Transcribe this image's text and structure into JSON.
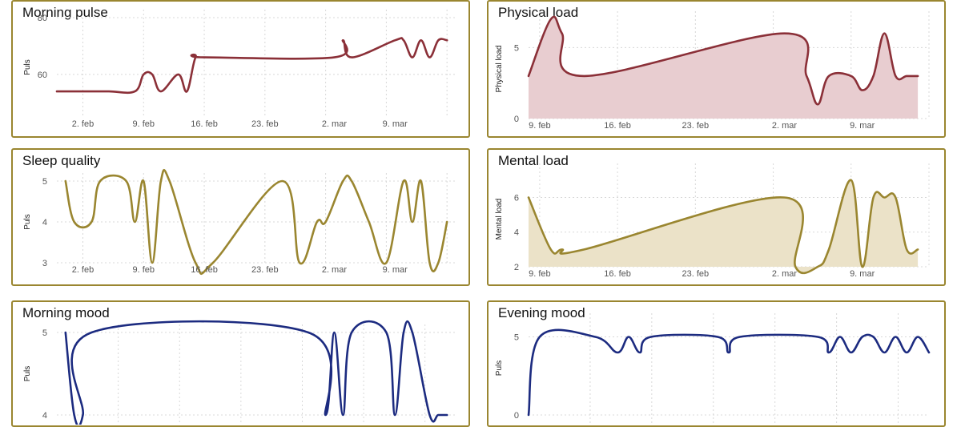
{
  "chart_data": [
    {
      "id": "morning-pulse",
      "type": "line",
      "title": "Morning pulse",
      "ylabel": "Puls",
      "ylim": [
        45,
        80
      ],
      "yticks": [
        60,
        80
      ],
      "xlim": [
        "2024-01-30",
        "2024-03-16"
      ],
      "xticks": [
        {
          "date": "2024-02-02",
          "label": "2. feb"
        },
        {
          "date": "2024-02-09",
          "label": "9. feb"
        },
        {
          "date": "2024-02-16",
          "label": "16. feb"
        },
        {
          "date": "2024-02-23",
          "label": "23. feb"
        },
        {
          "date": "2024-03-02",
          "label": "2. mar"
        },
        {
          "date": "2024-03-09",
          "label": "9. mar"
        }
      ],
      "color": "#8b3038",
      "area": false,
      "series": [
        {
          "x": [
            "2024-01-30",
            "2024-02-02",
            "2024-02-05",
            "2024-02-08",
            "2024-02-09",
            "2024-02-10",
            "2024-02-11",
            "2024-02-13",
            "2024-02-14",
            "2024-02-15",
            "2024-02-16",
            "2024-03-02",
            "2024-03-03",
            "2024-03-04",
            "2024-03-09",
            "2024-03-10",
            "2024-03-11",
            "2024-03-12",
            "2024-03-13",
            "2024-03-14",
            "2024-03-15"
          ],
          "y": [
            54,
            54,
            54,
            54,
            60,
            60,
            54,
            60,
            54,
            66,
            66,
            66,
            72,
            66,
            72,
            72,
            66,
            72,
            66,
            72,
            72
          ]
        }
      ]
    },
    {
      "id": "physical-load",
      "type": "area",
      "title": "Physical load",
      "ylabel": "Physical load",
      "ylim": [
        0,
        7
      ],
      "yticks": [
        0,
        5
      ],
      "xlim": [
        "2024-02-08",
        "2024-03-15"
      ],
      "xticks": [
        {
          "date": "2024-02-09",
          "label": "9. feb"
        },
        {
          "date": "2024-02-16",
          "label": "16. feb"
        },
        {
          "date": "2024-02-23",
          "label": "23. feb"
        },
        {
          "date": "2024-03-02",
          "label": "2. mar"
        },
        {
          "date": "2024-03-09",
          "label": "9. mar"
        }
      ],
      "color": "#8b3038",
      "fill": "#e8cdd0",
      "area": true,
      "series": [
        {
          "x": [
            "2024-02-08",
            "2024-02-10",
            "2024-02-11",
            "2024-02-13",
            "2024-03-02",
            "2024-03-04",
            "2024-03-05",
            "2024-03-06",
            "2024-03-08",
            "2024-03-09",
            "2024-03-10",
            "2024-03-11",
            "2024-03-12",
            "2024-03-13",
            "2024-03-14"
          ],
          "y": [
            3,
            7,
            6,
            3,
            6,
            3,
            1,
            3,
            3,
            2,
            3,
            6,
            3,
            3,
            3
          ]
        }
      ]
    },
    {
      "id": "sleep-quality",
      "type": "line",
      "title": "Sleep quality",
      "ylabel": "Puls",
      "ylim": [
        3,
        5
      ],
      "yticks": [
        3,
        4,
        5
      ],
      "xlim": [
        "2024-01-30",
        "2024-03-16"
      ],
      "xticks": [
        {
          "date": "2024-02-02",
          "label": "2. feb"
        },
        {
          "date": "2024-02-09",
          "label": "9. feb"
        },
        {
          "date": "2024-02-16",
          "label": "16. feb"
        },
        {
          "date": "2024-02-23",
          "label": "23. feb"
        },
        {
          "date": "2024-03-02",
          "label": "2. mar"
        },
        {
          "date": "2024-03-09",
          "label": "9. mar"
        }
      ],
      "color": "#9a8630",
      "area": false,
      "series": [
        {
          "x": [
            "2024-01-31",
            "2024-02-01",
            "2024-02-03",
            "2024-02-04",
            "2024-02-07",
            "2024-02-08",
            "2024-02-09",
            "2024-02-10",
            "2024-02-11",
            "2024-02-12",
            "2024-02-15",
            "2024-02-17",
            "2024-02-25",
            "2024-02-27",
            "2024-02-29",
            "2024-03-01",
            "2024-03-03",
            "2024-03-04",
            "2024-03-06",
            "2024-03-08",
            "2024-03-10",
            "2024-03-11",
            "2024-03-12",
            "2024-03-13",
            "2024-03-14",
            "2024-03-15"
          ],
          "y": [
            5,
            4,
            4,
            5,
            5,
            4,
            5,
            3,
            5,
            5,
            3,
            3,
            5,
            3,
            4,
            4,
            5,
            5,
            4,
            3,
            5,
            4,
            5,
            3,
            3,
            4
          ]
        }
      ]
    },
    {
      "id": "mental-load",
      "type": "area",
      "title": "Mental load",
      "ylabel": "Mental load",
      "ylim": [
        2,
        7.5
      ],
      "yticks": [
        2,
        4,
        6
      ],
      "xlim": [
        "2024-02-08",
        "2024-03-15"
      ],
      "xticks": [
        {
          "date": "2024-02-09",
          "label": "9. feb"
        },
        {
          "date": "2024-02-16",
          "label": "16. feb"
        },
        {
          "date": "2024-02-23",
          "label": "23. feb"
        },
        {
          "date": "2024-03-02",
          "label": "2. mar"
        },
        {
          "date": "2024-03-09",
          "label": "9. mar"
        }
      ],
      "color": "#9a8630",
      "fill": "#ebe2c8",
      "area": true,
      "series": [
        {
          "x": [
            "2024-02-08",
            "2024-02-10",
            "2024-02-11",
            "2024-02-13",
            "2024-03-02",
            "2024-03-03",
            "2024-03-05",
            "2024-03-06",
            "2024-03-08",
            "2024-03-09",
            "2024-03-10",
            "2024-03-11",
            "2024-03-12",
            "2024-03-13",
            "2024-03-14"
          ],
          "y": [
            6,
            3,
            3,
            3,
            6,
            2,
            2,
            3,
            7,
            2,
            6,
            6,
            6,
            3,
            3
          ]
        }
      ]
    },
    {
      "id": "morning-mood",
      "type": "line",
      "title": "Morning mood",
      "ylabel": "Puls",
      "ylim": [
        4,
        5
      ],
      "yticks": [
        4,
        5
      ],
      "xlim": [
        "2024-01-30",
        "2024-03-16"
      ],
      "xticks": [],
      "color": "#1c2b80",
      "area": false,
      "series": [
        {
          "x": [
            "2024-01-31",
            "2024-02-01",
            "2024-02-02",
            "2024-02-03",
            "2024-02-28",
            "2024-03-01",
            "2024-03-02",
            "2024-03-03",
            "2024-03-04",
            "2024-03-08",
            "2024-03-09",
            "2024-03-10",
            "2024-03-11",
            "2024-03-13",
            "2024-03-14",
            "2024-03-15"
          ],
          "y": [
            5,
            4,
            4,
            5,
            5,
            4,
            5,
            4,
            5,
            5,
            4,
            5,
            5,
            4,
            4,
            4
          ]
        }
      ]
    },
    {
      "id": "evening-mood",
      "type": "line",
      "title": "Evening mood",
      "ylabel": "Puls",
      "ylim": [
        0,
        6
      ],
      "yticks": [
        0,
        5
      ],
      "xlim": [
        "2024-02-08",
        "2024-03-15"
      ],
      "xticks": [],
      "color": "#1c2b80",
      "area": false,
      "series": [
        {
          "x": [
            "2024-02-08",
            "2024-02-09",
            "2024-02-14",
            "2024-02-16",
            "2024-02-17",
            "2024-02-18",
            "2024-02-19",
            "2024-02-25",
            "2024-02-26",
            "2024-02-27",
            "2024-03-05",
            "2024-03-06",
            "2024-03-07",
            "2024-03-08",
            "2024-03-09",
            "2024-03-10",
            "2024-03-11",
            "2024-03-12",
            "2024-03-13",
            "2024-03-14",
            "2024-03-15"
          ],
          "y": [
            0,
            5,
            5,
            4,
            5,
            4,
            5,
            5,
            4,
            5,
            5,
            4,
            5,
            4,
            5,
            5,
            4,
            5,
            4,
            5,
            4
          ]
        }
      ]
    }
  ]
}
